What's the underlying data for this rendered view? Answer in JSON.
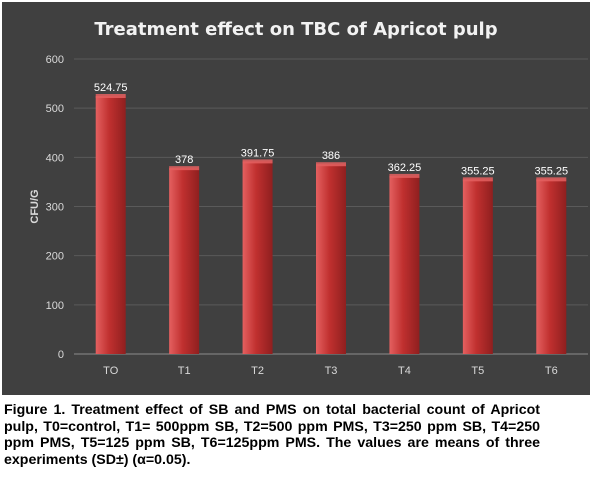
{
  "chart_data": {
    "type": "bar",
    "title": "Treatment effect on TBC of Apricot pulp",
    "xlabel": "",
    "ylabel": "CFU/G",
    "categories": [
      "TO",
      "T1",
      "T2",
      "T3",
      "T4",
      "T5",
      "T6"
    ],
    "values": [
      524.75,
      378,
      391.75,
      386,
      362.25,
      355.25,
      355.25
    ],
    "data_labels": [
      "524.75",
      "378",
      "391.75",
      "386",
      "362.25",
      "355.25",
      "355.25"
    ],
    "ylim": [
      0,
      600
    ],
    "yticks": [
      0,
      100,
      200,
      300,
      400,
      500,
      600
    ],
    "grid": true,
    "legend": "none",
    "colors": {
      "bar": "#c0302f",
      "bar_light": "#e46060",
      "bar_dark": "#8f1f1f",
      "background": "#404040",
      "grid": "#5a5a5a"
    }
  },
  "caption": "Figure 1. Treatment effect of SB and PMS on total bacterial count of Apricot pulp, T0=control, T1= 500ppm SB, T2=500 ppm PMS, T3=250 ppm SB, T4=250 ppm PMS, T5=125 ppm SB, T6=125ppm PMS. The values are means of three experiments (SD±) (α=0.05)."
}
